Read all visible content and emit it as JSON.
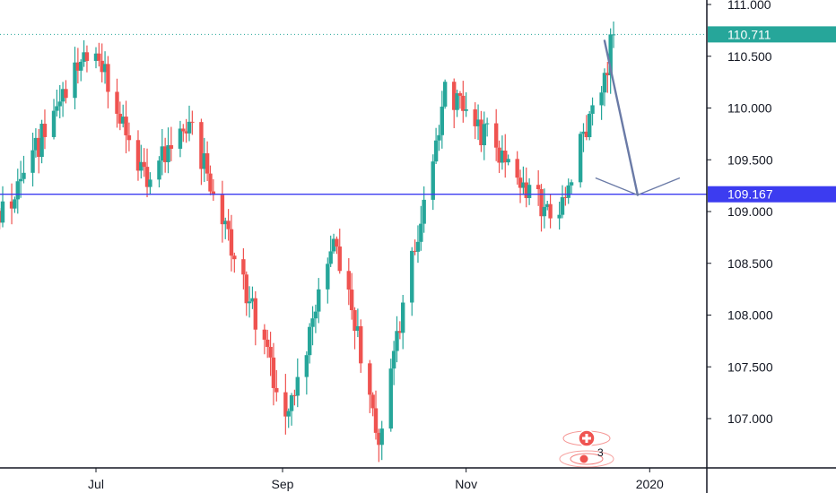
{
  "chart_data": {
    "type": "candlestick",
    "instrument_hint": "USDJPY",
    "y_axis": {
      "position": "right",
      "range": [
        106.62,
        111.05
      ],
      "ticks": [
        "111.000",
        "110.500",
        "110.000",
        "109.500",
        "109.000",
        "108.500",
        "108.000",
        "107.500",
        "107.000"
      ],
      "tick_values": [
        111.0,
        110.5,
        110.0,
        109.5,
        109.0,
        108.5,
        108.0,
        107.5,
        107.0
      ]
    },
    "x_axis": {
      "ticks": [
        "Jul",
        "Sep",
        "Nov",
        "2020"
      ],
      "tick_dates": [
        "2019-07-01",
        "2019-09-01",
        "2019-11-01",
        "2020-01-01"
      ],
      "range": [
        "2019-05-01",
        "2020-01-20"
      ]
    },
    "colors": {
      "up": "#26a69a",
      "down": "#ef5350",
      "horizontal_line": "#3c3cf0",
      "last_price": "#26a69a",
      "arrow": "#6a7aa6",
      "background": "#ffffff",
      "axis_line": "#131722"
    },
    "last_price": {
      "value": 110.711,
      "label": "110.711"
    },
    "horizontal_line": {
      "value": 109.167,
      "label": "109.167"
    },
    "projection_arrow": {
      "from": {
        "date": "2019-12-17",
        "price": 110.65
      },
      "to": {
        "date": "2019-12-28",
        "price": 109.16
      },
      "direction": "down"
    },
    "candles_summary": {
      "first_date": "2019-05-21",
      "last_date": "2019-12-21",
      "key_points": [
        {
          "date": "2019-05-24",
          "price": 108.6
        },
        {
          "date": "2019-06-30",
          "price": 110.65
        },
        {
          "date": "2019-07-18",
          "price": 109.3
        },
        {
          "date": "2019-08-01",
          "price": 109.9
        },
        {
          "date": "2019-08-20",
          "price": 108.2
        },
        {
          "date": "2019-09-03",
          "price": 107.0
        },
        {
          "date": "2019-09-18",
          "price": 108.8
        },
        {
          "date": "2019-10-03",
          "price": 106.85
        },
        {
          "date": "2019-10-25",
          "price": 110.15
        },
        {
          "date": "2019-11-15",
          "price": 109.5
        },
        {
          "date": "2019-11-30",
          "price": 108.9
        },
        {
          "date": "2019-12-21",
          "price": 110.71
        }
      ]
    },
    "event_markers": [
      {
        "icon": "flag-plus-icon",
        "count": ""
      },
      {
        "icon": "events-icon",
        "count": "3"
      }
    ]
  }
}
